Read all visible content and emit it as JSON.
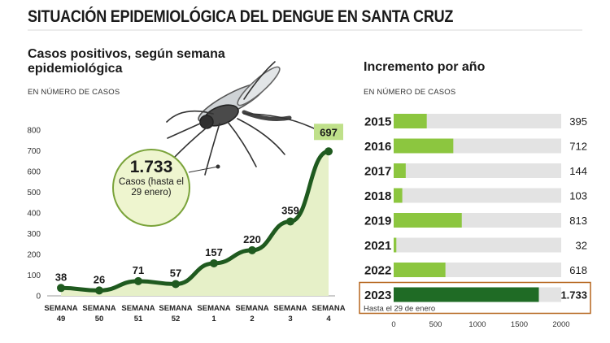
{
  "title": "SITUACIÓN EPIDEMIOLÓGICA DEL DENGUE EN SANTA CRUZ",
  "left_chart": {
    "subtitle": "Casos positivos, según semana epidemiológica",
    "unit": "EN NÚMERO DE CASOS",
    "total_value": "1.733",
    "total_note": "Casos (hasta el 29 enero)"
  },
  "right_chart": {
    "subtitle": "Incremento por año",
    "unit": "EN NÚMERO DE CASOS",
    "note": "Hasta el 29 de enero"
  },
  "colors": {
    "bright_green": "#8cc63f",
    "dark_green": "#1f6b25",
    "line_green": "#1f5a1f",
    "gray_track": "#e3e3e3",
    "highlight_border": "#b5651d"
  },
  "chart_data": [
    {
      "type": "area",
      "title": "Casos positivos, según semana epidemiológica",
      "ylabel": "EN NÚMERO DE CASOS",
      "categories": [
        "SEMANA 49",
        "SEMANA 50",
        "SEMANA 51",
        "SEMANA 52",
        "SEMANA 1",
        "SEMANA 2",
        "SEMANA 3",
        "SEMANA 4"
      ],
      "values": [
        38,
        26,
        71,
        57,
        157,
        220,
        359,
        697
      ],
      "ylim": [
        0,
        800
      ],
      "yticks": [
        0,
        100,
        200,
        300,
        400,
        500,
        600,
        700,
        800
      ],
      "grid": false,
      "annotation": "1.733 Casos (hasta el 29 enero)"
    },
    {
      "type": "bar",
      "orientation": "horizontal",
      "title": "Incremento por año",
      "xlabel": "EN NÚMERO DE CASOS",
      "categories": [
        "2015",
        "2016",
        "2017",
        "2018",
        "2019",
        "2021",
        "2022",
        "2023"
      ],
      "values": [
        395,
        712,
        144,
        103,
        813,
        32,
        618,
        1733
      ],
      "labels": [
        "395",
        "712",
        "144",
        "103",
        "813",
        "32",
        "618",
        "1.733"
      ],
      "xlim": [
        0,
        2000
      ],
      "xticks": [
        0,
        500,
        1000,
        1500,
        2000
      ],
      "highlight": "2023",
      "annotation": "Hasta el 29 de enero"
    }
  ]
}
